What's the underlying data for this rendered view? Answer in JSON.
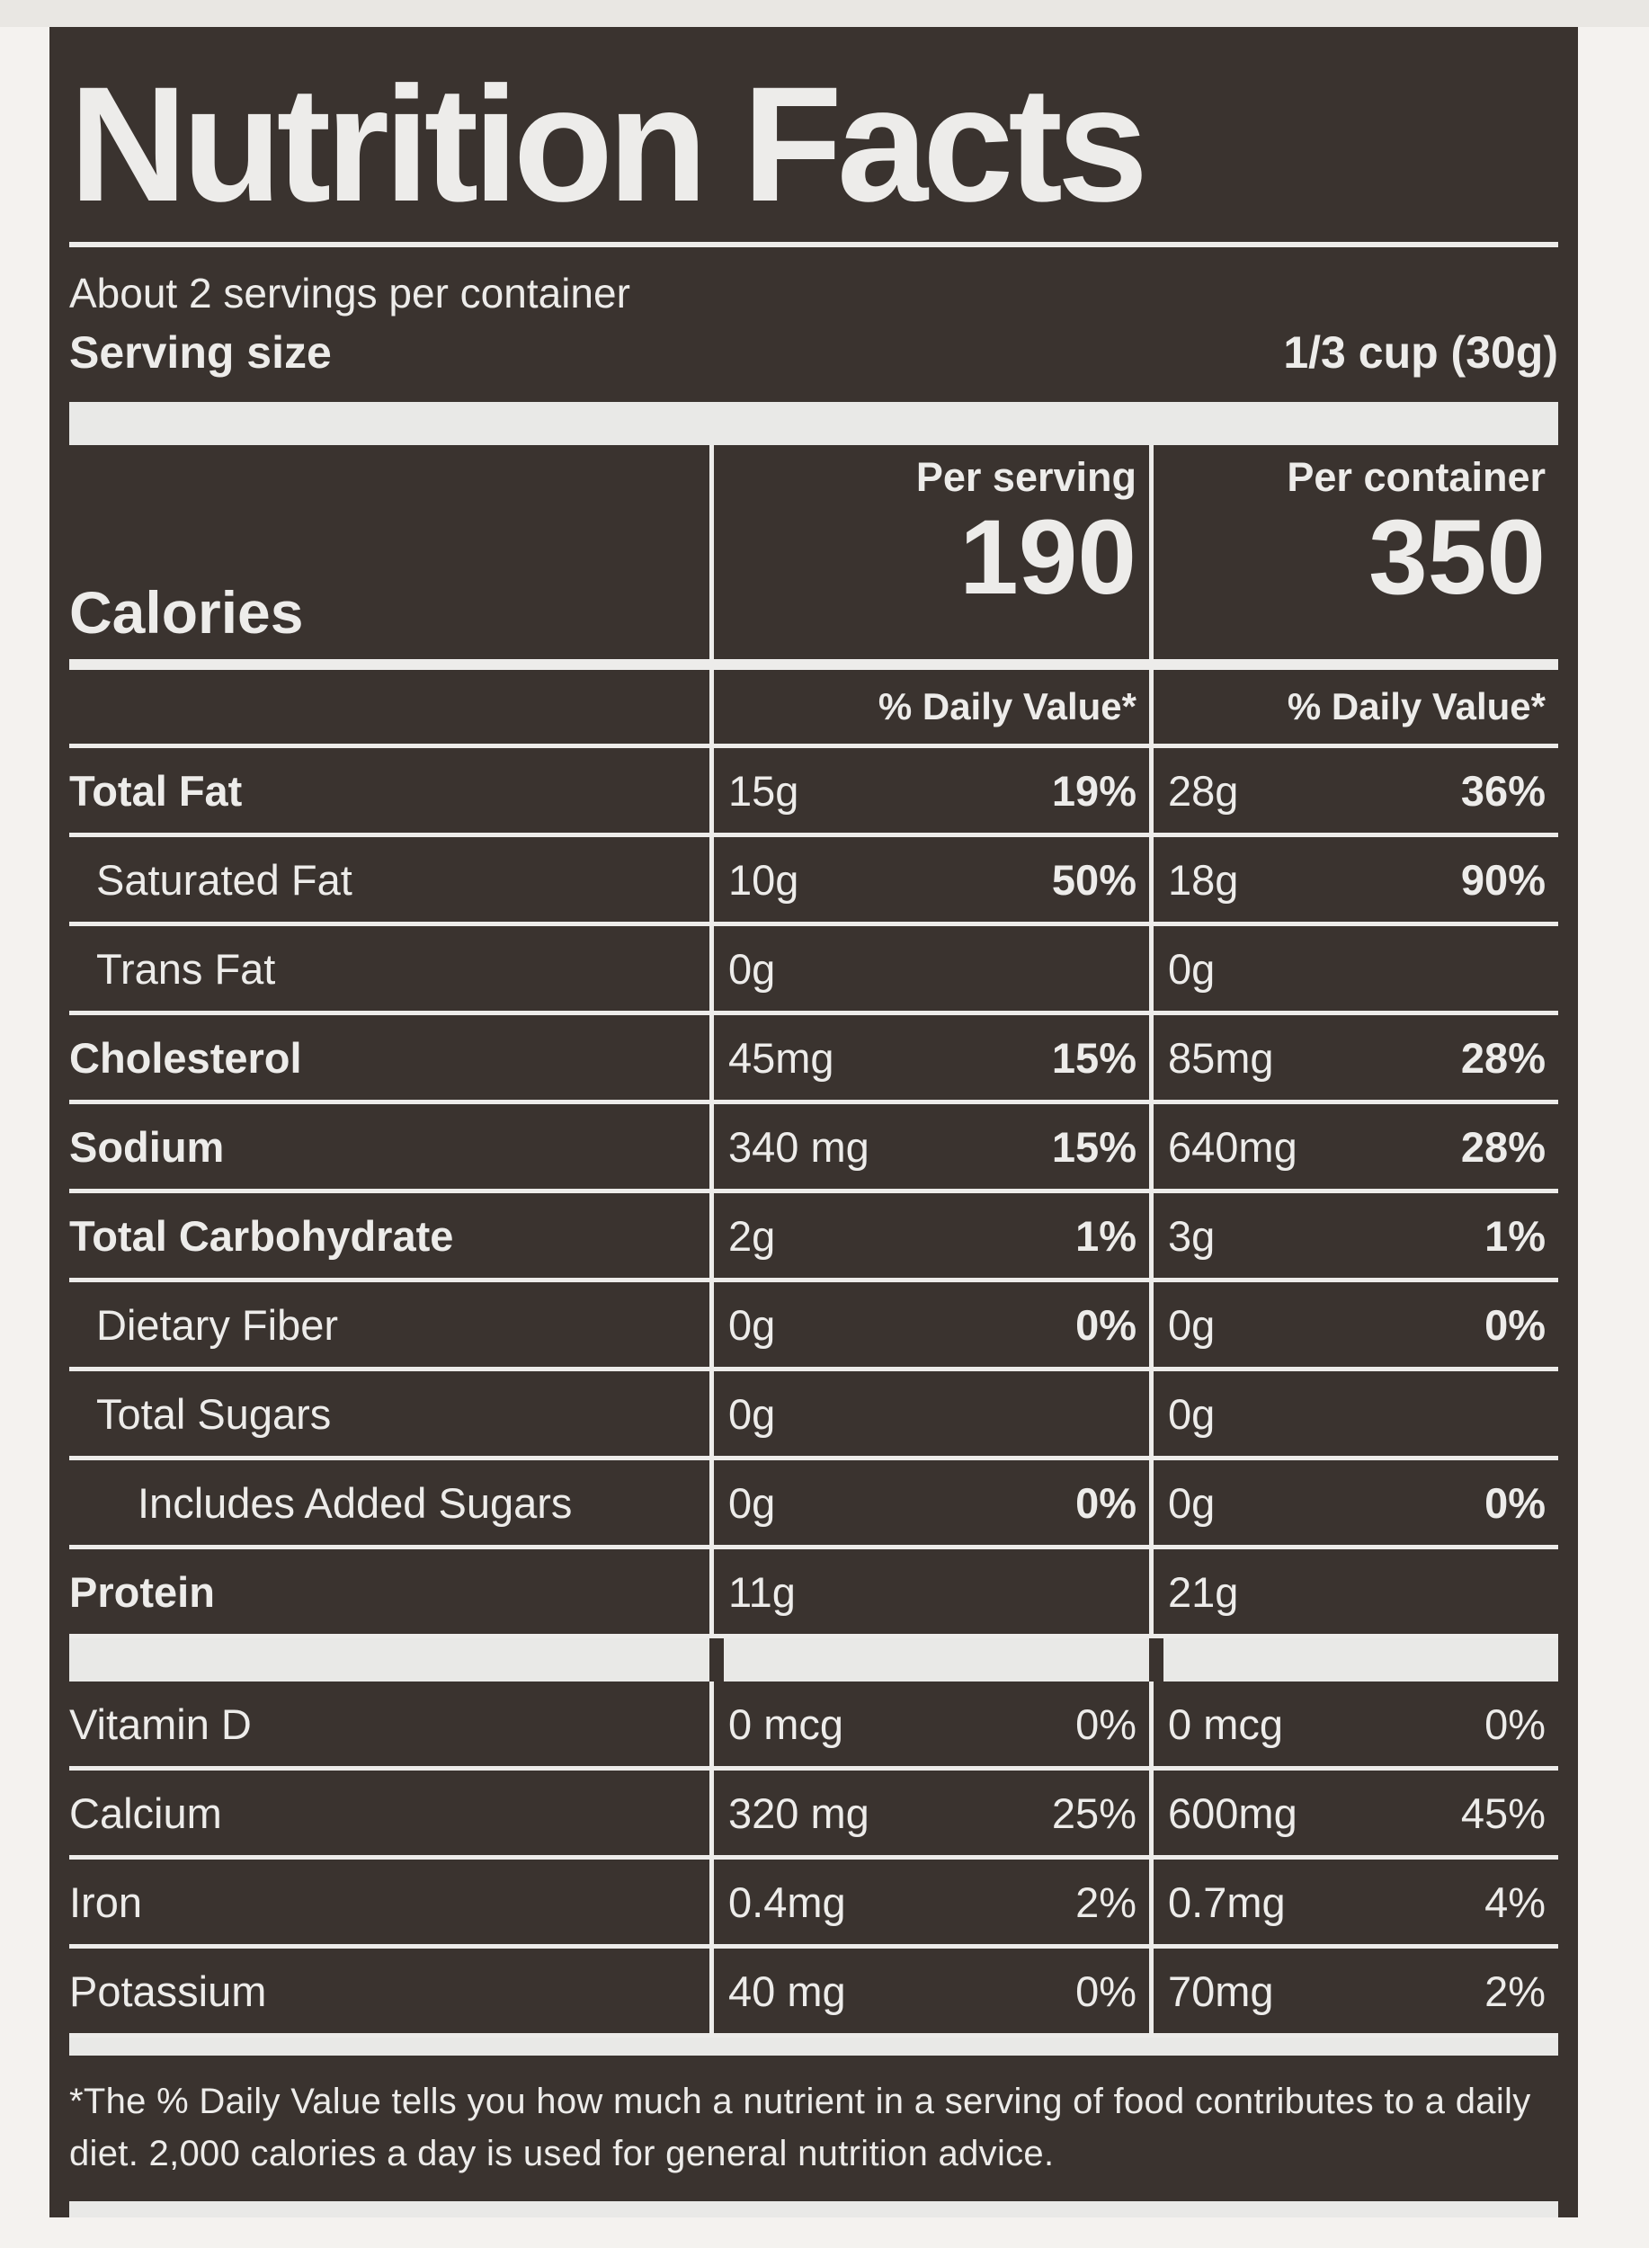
{
  "colors": {
    "label_bg": "#3a332f",
    "text": "#edecea",
    "page_bg": "#f4f2ef"
  },
  "header": {
    "title": "Nutrition Facts",
    "servings_per_container": "About 2 servings per container",
    "serving_size_label": "Serving size",
    "serving_size_value": "1/3 cup (30g)"
  },
  "calories": {
    "label": "Calories",
    "per_serving_header": "Per serving",
    "per_container_header": "Per container",
    "per_serving_value": "190",
    "per_container_value": "350"
  },
  "daily_value_header": {
    "per_serving": "% Daily Value*",
    "per_container": "% Daily Value*"
  },
  "nutrients": [
    {
      "label": "Total Fat",
      "serving_amount": "15g",
      "serving_dv": "19%",
      "container_amount": "28g",
      "container_dv": "36%"
    },
    {
      "label": "Saturated Fat",
      "serving_amount": "10g",
      "serving_dv": "50%",
      "container_amount": "18g",
      "container_dv": "90%"
    },
    {
      "label": "Trans Fat",
      "serving_amount": "0g",
      "serving_dv": "",
      "container_amount": "0g",
      "container_dv": ""
    },
    {
      "label": "Cholesterol",
      "serving_amount": "45mg",
      "serving_dv": "15%",
      "container_amount": "85mg",
      "container_dv": "28%"
    },
    {
      "label": "Sodium",
      "serving_amount": "340 mg",
      "serving_dv": "15%",
      "container_amount": "640mg",
      "container_dv": "28%"
    },
    {
      "label": "Total Carbohydrate",
      "serving_amount": "2g",
      "serving_dv": "1%",
      "container_amount": "3g",
      "container_dv": "1%"
    },
    {
      "label": "Dietary Fiber",
      "serving_amount": "0g",
      "serving_dv": "0%",
      "container_amount": "0g",
      "container_dv": "0%"
    },
    {
      "label": "Total Sugars",
      "serving_amount": "0g",
      "serving_dv": "",
      "container_amount": "0g",
      "container_dv": ""
    },
    {
      "label": "Includes Added Sugars",
      "serving_amount": "0g",
      "serving_dv": "0%",
      "container_amount": "0g",
      "container_dv": "0%"
    },
    {
      "label": "Protein",
      "serving_amount": "11g",
      "serving_dv": "",
      "container_amount": "21g",
      "container_dv": ""
    }
  ],
  "vitamins": [
    {
      "label": "Vitamin D",
      "serving_amount": "0 mcg",
      "serving_dv": "0%",
      "container_amount": "0 mcg",
      "container_dv": "0%"
    },
    {
      "label": "Calcium",
      "serving_amount": "320 mg",
      "serving_dv": "25%",
      "container_amount": "600mg",
      "container_dv": "45%"
    },
    {
      "label": "Iron",
      "serving_amount": "0.4mg",
      "serving_dv": "2%",
      "container_amount": "0.7mg",
      "container_dv": "4%"
    },
    {
      "label": "Potassium",
      "serving_amount": "40 mg",
      "serving_dv": "0%",
      "container_amount": "70mg",
      "container_dv": "2%"
    }
  ],
  "footnote": "*The % Daily Value tells you how much a nutrient in a serving of food contributes to a daily diet. 2,000 calories a day is used for general nutrition advice."
}
